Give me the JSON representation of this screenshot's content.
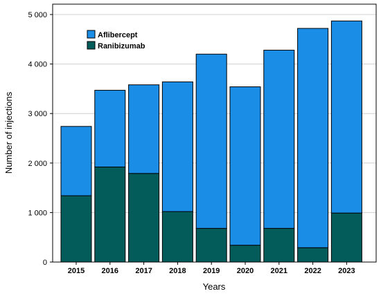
{
  "chart_data": {
    "type": "bar",
    "stacked": true,
    "categories": [
      "2015",
      "2016",
      "2017",
      "2018",
      "2019",
      "2020",
      "2021",
      "2022",
      "2023"
    ],
    "series": [
      {
        "name": "Ranibizumab",
        "color": "#045c5a",
        "values": [
          1340,
          1920,
          1790,
          1020,
          680,
          340,
          680,
          290,
          990
        ]
      },
      {
        "name": "Aflibercept",
        "color": "#1a8de6",
        "values": [
          1400,
          1550,
          1790,
          2620,
          3520,
          3200,
          3600,
          4430,
          3880
        ]
      }
    ],
    "title": "",
    "xlabel": "Years",
    "ylabel": "Number of injections",
    "ylim": [
      0,
      5000
    ],
    "yticks": [
      0,
      1000,
      2000,
      3000,
      4000,
      5000
    ],
    "ytick_labels": [
      "0",
      "1 000",
      "2 000",
      "3 000",
      "4 000",
      "5 000"
    ],
    "grid": true,
    "legend": {
      "position": "top-left",
      "order": [
        "Aflibercept",
        "Ranibizumab"
      ]
    }
  }
}
